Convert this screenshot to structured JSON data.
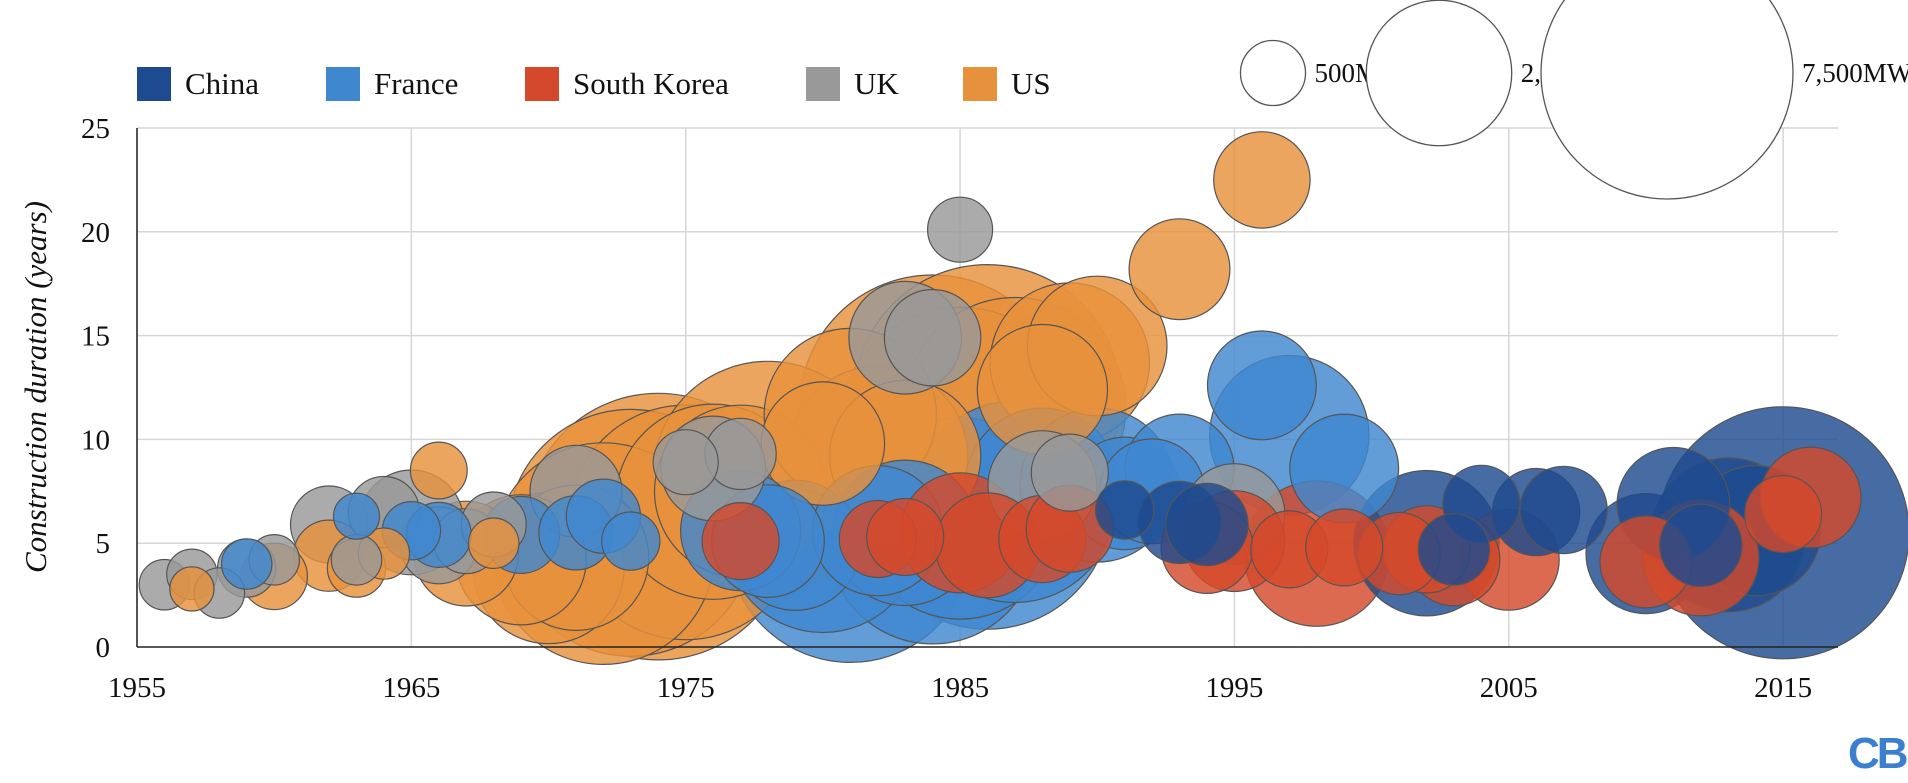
{
  "chart_data": {
    "type": "scatter",
    "title": "",
    "xlabel": "",
    "ylabel": "Construction duration (years)",
    "xlim": [
      1955,
      2017
    ],
    "ylim": [
      0,
      25
    ],
    "x_ticks": [
      "1955",
      "1965",
      "1975",
      "1985",
      "1995",
      "2005",
      "2015"
    ],
    "y_ticks": [
      "0",
      "5",
      "10",
      "15",
      "20",
      "25"
    ],
    "grid": true,
    "legend_placement": "top-left",
    "size_unit": "MW",
    "size_legend": [
      {
        "label": "500MW",
        "value": 500
      },
      {
        "label": "2,500MW",
        "value": 2500
      },
      {
        "label": "7,500MW",
        "value": 7500
      }
    ],
    "series": [
      {
        "name": "US",
        "color": "#e8913c",
        "points": [
          [
            1957,
            2.8,
            230
          ],
          [
            1960,
            3.4,
            520
          ],
          [
            1962,
            4.4,
            600
          ],
          [
            1963,
            3.8,
            400
          ],
          [
            1964,
            4.5,
            310
          ],
          [
            1966,
            8.5,
            380
          ],
          [
            1967,
            4.5,
            1300
          ],
          [
            1968,
            5.0,
            300
          ],
          [
            1969,
            4.2,
            2000
          ],
          [
            1970,
            3.8,
            2700
          ],
          [
            1971,
            4.3,
            2500
          ],
          [
            1972,
            4.5,
            5800
          ],
          [
            1973,
            5.5,
            7200
          ],
          [
            1974,
            5.8,
            8400
          ],
          [
            1975,
            6.0,
            6500
          ],
          [
            1976,
            7.0,
            4500
          ],
          [
            1977,
            7.5,
            3500
          ],
          [
            1978,
            8.2,
            6300
          ],
          [
            1980,
            9.8,
            1800
          ],
          [
            1981,
            11.2,
            3500
          ],
          [
            1982,
            9.2,
            3800
          ],
          [
            1983,
            9.2,
            2700
          ],
          [
            1984,
            11.5,
            8400
          ],
          [
            1985,
            10.5,
            7000
          ],
          [
            1986,
            12.0,
            8400
          ],
          [
            1987,
            11.5,
            5800
          ],
          [
            1988,
            12.4,
            2000
          ],
          [
            1989,
            13.7,
            3000
          ],
          [
            1990,
            14.5,
            2300
          ],
          [
            1993,
            18.2,
            1200
          ],
          [
            1996,
            22.5,
            1100
          ]
        ]
      },
      {
        "name": "UK",
        "color": "#999999",
        "points": [
          [
            1956,
            3.0,
            300
          ],
          [
            1957,
            3.5,
            300
          ],
          [
            1958,
            2.6,
            300
          ],
          [
            1959,
            3.8,
            400
          ],
          [
            1960,
            4.2,
            300
          ],
          [
            1962,
            5.9,
            700
          ],
          [
            1963,
            4.2,
            300
          ],
          [
            1964,
            6.5,
            600
          ],
          [
            1965,
            6.0,
            1300
          ],
          [
            1966,
            4.9,
            700
          ],
          [
            1967,
            5.1,
            500
          ],
          [
            1968,
            5.9,
            500
          ],
          [
            1971,
            7.5,
            1000
          ],
          [
            1975,
            8.9,
            500
          ],
          [
            1976,
            8.6,
            1300
          ],
          [
            1977,
            9.3,
            600
          ],
          [
            1983,
            14.9,
            1500
          ],
          [
            1984,
            14.9,
            1100
          ],
          [
            1985,
            20.1,
            500
          ],
          [
            1988,
            7.8,
            1400
          ],
          [
            1989,
            8.4,
            700
          ],
          [
            1995,
            6.4,
            1200
          ]
        ]
      },
      {
        "name": "France",
        "color": "#3f88d0",
        "points": [
          [
            1959,
            4.0,
            300
          ],
          [
            1963,
            6.3,
            250
          ],
          [
            1965,
            5.6,
            400
          ],
          [
            1966,
            5.4,
            500
          ],
          [
            1969,
            5.4,
            700
          ],
          [
            1971,
            5.5,
            650
          ],
          [
            1972,
            6.3,
            650
          ],
          [
            1973,
            5.1,
            400
          ],
          [
            1977,
            5.6,
            1700
          ],
          [
            1978,
            5.1,
            1500
          ],
          [
            1979,
            4.9,
            2000
          ],
          [
            1980,
            5.4,
            4500
          ],
          [
            1981,
            5.2,
            7200
          ],
          [
            1982,
            5.6,
            2000
          ],
          [
            1983,
            5.5,
            2500
          ],
          [
            1984,
            5.2,
            5200
          ],
          [
            1985,
            6.2,
            4800
          ],
          [
            1986,
            6.8,
            7200
          ],
          [
            1987,
            7.0,
            4800
          ],
          [
            1988,
            7.8,
            2800
          ],
          [
            1990,
            7.8,
            2800
          ],
          [
            1991,
            7.4,
            1500
          ],
          [
            1992,
            7.5,
            1300
          ],
          [
            1993,
            8.6,
            1400
          ],
          [
            1996,
            12.6,
            1400
          ],
          [
            1997,
            10.2,
            3000
          ],
          [
            1999,
            8.6,
            1400
          ]
        ]
      },
      {
        "name": "South Korea",
        "color": "#d4492b",
        "points": [
          [
            1977,
            5.1,
            700
          ],
          [
            1982,
            5.2,
            700
          ],
          [
            1983,
            5.3,
            700
          ],
          [
            1985,
            5.5,
            1700
          ],
          [
            1986,
            4.9,
            1300
          ],
          [
            1988,
            5.2,
            900
          ],
          [
            1989,
            5.7,
            900
          ],
          [
            1994,
            4.8,
            1000
          ],
          [
            1995,
            5.1,
            1200
          ],
          [
            1997,
            4.7,
            700
          ],
          [
            1998,
            4.5,
            2500
          ],
          [
            1999,
            4.8,
            700
          ],
          [
            2001,
            4.5,
            800
          ],
          [
            2002,
            4.7,
            900
          ],
          [
            2003,
            4.2,
            1000
          ],
          [
            2005,
            4.2,
            1200
          ],
          [
            2010,
            4.1,
            1000
          ],
          [
            2012,
            4.3,
            1600
          ],
          [
            2015,
            6.4,
            700
          ],
          [
            2016,
            7.2,
            1200
          ]
        ]
      },
      {
        "name": "China",
        "color": "#1e4a8f",
        "points": [
          [
            1991,
            6.6,
            400
          ],
          [
            1993,
            6.0,
            800
          ],
          [
            1994,
            5.9,
            800
          ],
          [
            2002,
            5.0,
            2500
          ],
          [
            2003,
            4.7,
            600
          ],
          [
            2004,
            6.9,
            700
          ],
          [
            2006,
            6.5,
            900
          ],
          [
            2007,
            6.6,
            900
          ],
          [
            2010,
            4.5,
            1700
          ],
          [
            2011,
            6.9,
            1500
          ],
          [
            2012,
            4.9,
            800
          ],
          [
            2013,
            5.4,
            2800
          ],
          [
            2014,
            5.6,
            2000
          ],
          [
            2015,
            5.5,
            7500
          ]
        ]
      }
    ]
  },
  "logo": {
    "text": "CB",
    "color": "#3a7fd0"
  }
}
